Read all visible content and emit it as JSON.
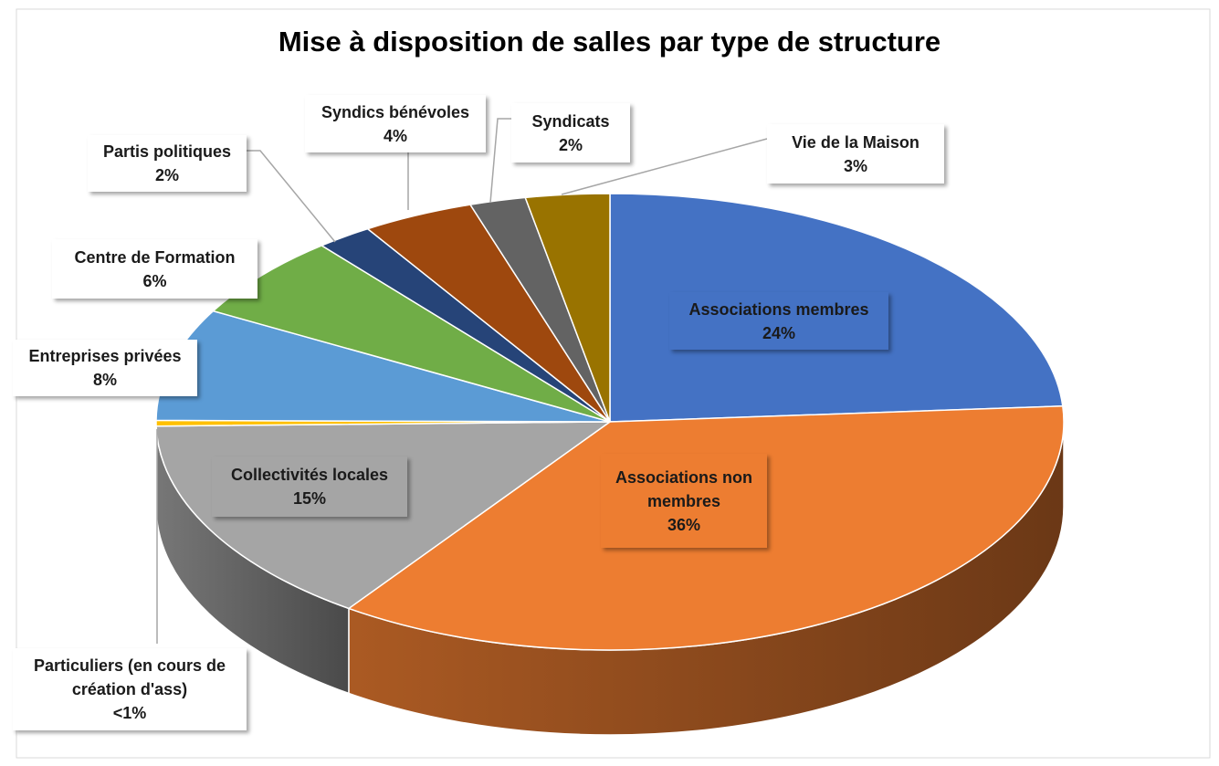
{
  "chart_data": {
    "type": "pie",
    "title": "Mise à disposition de salles par type de structure",
    "categories": [
      "Associations membres",
      "Associations non membres",
      "Collectivités locales",
      "Particuliers (en cours de création d'ass)",
      "Entreprises privées",
      "Centre de Formation",
      "Partis politiques",
      "Syndics bénévoles",
      "Syndicats",
      "Vie de la Maison"
    ],
    "values": [
      24,
      36,
      15,
      0.4,
      8,
      6,
      2,
      4,
      2,
      3
    ],
    "value_labels": [
      "24%",
      "36%",
      "15%",
      "<1%",
      "8%",
      "6%",
      "2%",
      "4%",
      "2%",
      "3%"
    ],
    "colors": [
      "#4472c4",
      "#ed7d31",
      "#a5a5a5",
      "#ffc000",
      "#5b9bd5",
      "#70ad47",
      "#264478",
      "#9e480e",
      "#636363",
      "#997300"
    ]
  }
}
